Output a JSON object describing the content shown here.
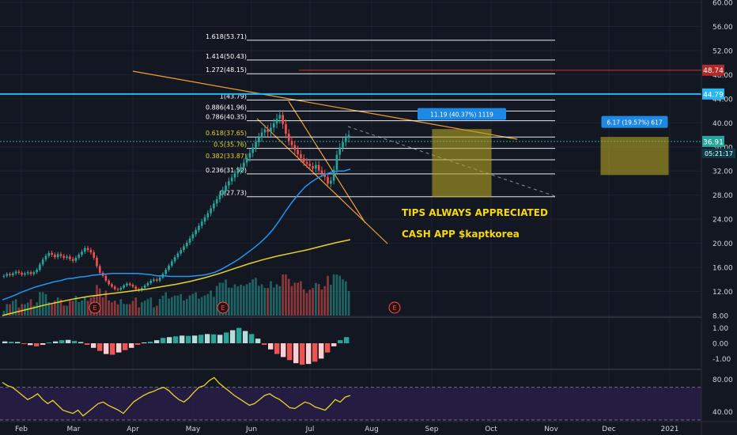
{
  "colors": {
    "background": "#131722",
    "grid": "#1e2230",
    "up": "#26a69a",
    "down": "#ef5350",
    "ma_fast": "#2196f3",
    "ma_slow": "#e6d32a",
    "fib": "#ffffff",
    "fib_label_golden": "#e6d32a",
    "trendline": "#f0a030",
    "resistance": "#b02a2a",
    "support": "#29b6f6",
    "target_box": "#b5a425",
    "annotation_text": "#f5d90a",
    "rsi_band": "#2a1f4a",
    "rsi_line": "#e6d32a",
    "text": "#d1d4dc"
  },
  "chart_data": [
    {
      "type": "candlestick",
      "title": "",
      "x_labels": [
        "Feb",
        "Mar",
        "Apr",
        "May",
        "Jun",
        "Jul",
        "Aug",
        "Sep",
        "Oct",
        "Nov",
        "Dec",
        "2021"
      ],
      "ylim": [
        8,
        60
      ],
      "y_ticks": [
        "8.00",
        "12.00",
        "16.00",
        "20.00",
        "24.00",
        "28.00",
        "32.00",
        "36.00",
        "40.00",
        "44.00",
        "48.00",
        "52.00",
        "56.00",
        "60.00"
      ],
      "closes": [
        14.6,
        14.9,
        14.7,
        15.0,
        15.3,
        15.1,
        14.8,
        15.0,
        15.2,
        14.9,
        15.2,
        15.6,
        16.5,
        17.3,
        17.9,
        18.4,
        18.1,
        17.7,
        18.2,
        17.9,
        17.6,
        17.8,
        17.4,
        17.1,
        17.6,
        18.1,
        18.6,
        19.2,
        18.9,
        18.5,
        17.6,
        16.2,
        15.1,
        14.6,
        13.8,
        13.2,
        12.8,
        12.4,
        12.3,
        12.6,
        13.0,
        13.3,
        13.1,
        12.8,
        12.4,
        12.2,
        12.6,
        13.0,
        13.4,
        13.8,
        14.0,
        13.8,
        14.3,
        14.9,
        15.6,
        16.3,
        17.0,
        17.7,
        18.3,
        18.9,
        19.5,
        20.1,
        20.8,
        21.5,
        22.2,
        22.9,
        23.6,
        24.3,
        25.0,
        25.8,
        26.6,
        27.3,
        28.1,
        28.8,
        29.6,
        30.3,
        30.9,
        31.6,
        32.1,
        32.6,
        33.4,
        34.2,
        35.0,
        35.9,
        36.8,
        37.6,
        38.4,
        38.9,
        38.5,
        39.2,
        39.9,
        40.7,
        41.3,
        39.8,
        38.2,
        37.0,
        36.3,
        35.5,
        34.8,
        34.1,
        33.5,
        33.2,
        32.8,
        32.4,
        33.0,
        32.1,
        31.6,
        31.0,
        29.9,
        30.4,
        32.2,
        34.7,
        35.9,
        36.8,
        37.5,
        38.0
      ],
      "ma_fast": [
        10.6,
        11.0,
        11.4,
        11.9,
        12.3,
        12.7,
        13.0,
        13.3,
        13.6,
        13.8,
        14.1,
        14.2,
        14.4,
        14.5,
        14.7,
        14.8,
        14.9,
        15.0,
        15.0,
        15.0,
        15.0,
        15.0,
        14.9,
        14.8,
        14.6,
        14.6,
        14.5,
        14.5,
        14.5,
        14.5,
        14.6,
        14.7,
        14.9,
        15.2,
        15.7,
        16.3,
        16.9,
        17.6,
        18.4,
        19.2,
        20.1,
        21.1,
        22.3,
        23.8,
        25.4,
        26.9,
        28.2,
        29.4,
        30.2,
        30.9,
        31.4,
        31.8,
        32.0,
        32.0,
        32.3
      ],
      "ma_slow": [
        8.0,
        8.6,
        9.2,
        9.8,
        10.3,
        10.8,
        11.2,
        11.5,
        11.8,
        12.1,
        12.4,
        12.8,
        13.2,
        13.7,
        14.3,
        15.0,
        15.8,
        16.6,
        17.3,
        17.9,
        18.4,
        18.9,
        19.5,
        20.1,
        20.6
      ],
      "fib_levels": [
        {
          "label": "1.618(53.71)",
          "value": 53.71
        },
        {
          "label": "1.414(50.43)",
          "value": 50.43
        },
        {
          "label": "1.272(48.15)",
          "value": 48.15
        },
        {
          "label": "1(43.79)",
          "value": 43.79
        },
        {
          "label": "0.886(41.96)",
          "value": 41.96
        },
        {
          "label": "0.786(40.35)",
          "value": 40.35
        },
        {
          "label": "0.618(37.65)",
          "value": 37.65
        },
        {
          "label": "0.5(35.76)",
          "value": 35.76
        },
        {
          "label": "0.382(33.87)",
          "value": 33.87
        },
        {
          "label": "0.236(31.52)",
          "value": 31.52
        },
        {
          "label": "0(27.73)",
          "value": 27.73
        }
      ],
      "price_tags": [
        {
          "label": "48.74",
          "value": 48.74
        },
        {
          "label": "44.79",
          "value": 44.79
        },
        {
          "label": "36.91",
          "value": 36.91
        }
      ],
      "countdown": "05:21:17",
      "measure_boxes": [
        {
          "label": "11.19 (40.37%) 1119",
          "from": 27.73,
          "to": 38.9
        },
        {
          "label": "6.17 (19.57%) 617",
          "from": 31.4,
          "to": 37.6
        }
      ],
      "earnings_markers": [
        "E",
        "E",
        "E"
      ],
      "annotations": [
        "TIPS ALWAYS APPRECIATED",
        "CASH APP $kaptkorea"
      ]
    },
    {
      "type": "bar",
      "title": "",
      "ylim": [
        -1.6,
        1.6
      ],
      "y_ticks": [
        "1.00",
        "0.00",
        "-1.00"
      ],
      "values": [
        0.12,
        0.1,
        0.08,
        -0.05,
        -0.12,
        -0.2,
        -0.1,
        0.05,
        0.12,
        0.2,
        0.22,
        0.15,
        0.08,
        -0.1,
        -0.3,
        -0.5,
        -0.7,
        -0.75,
        -0.6,
        -0.45,
        -0.3,
        -0.1,
        0.05,
        0.1,
        0.2,
        0.35,
        0.4,
        0.45,
        0.5,
        0.48,
        0.5,
        0.55,
        0.6,
        0.58,
        0.55,
        0.7,
        0.85,
        1.0,
        0.8,
        0.6,
        0.3,
        -0.1,
        -0.4,
        -0.7,
        -0.9,
        -1.1,
        -1.3,
        -1.4,
        -1.35,
        -1.2,
        -1.0,
        -0.6,
        -0.2,
        0.2,
        0.4
      ]
    },
    {
      "type": "line",
      "title": "",
      "ylim": [
        30,
        90
      ],
      "y_ticks": [
        "80.00",
        "40.00"
      ],
      "band": [
        30,
        70
      ],
      "values": [
        76,
        72,
        70,
        65,
        60,
        55,
        58,
        62,
        55,
        50,
        54,
        48,
        42,
        40,
        38,
        42,
        35,
        40,
        45,
        50,
        52,
        48,
        45,
        42,
        38,
        45,
        52,
        56,
        60,
        63,
        65,
        68,
        70,
        66,
        60,
        55,
        52,
        57,
        64,
        70,
        72,
        78,
        82,
        75,
        70,
        65,
        60,
        56,
        52,
        48,
        50,
        55,
        60,
        62,
        58,
        55,
        50,
        45,
        44,
        48,
        52,
        50,
        46,
        44,
        42,
        48,
        55,
        52,
        58,
        60
      ]
    }
  ]
}
